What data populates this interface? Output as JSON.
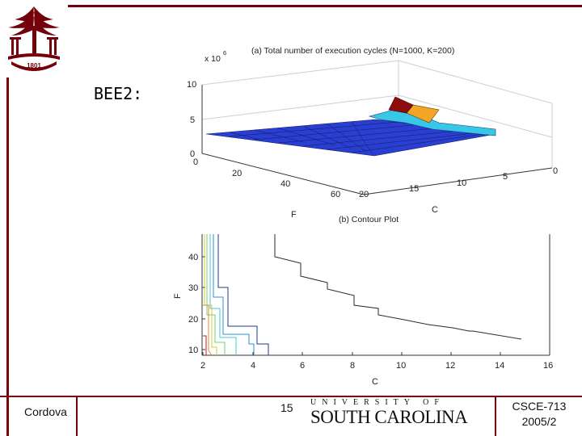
{
  "slide": {
    "heading": "BEE2:",
    "author": "Cordova",
    "page_number": "15",
    "course": "CSCE-713",
    "term": "2005/2"
  },
  "university": {
    "line1": "UNIVERSITY OF",
    "line2": "SOUTH CAROLINA",
    "seal_year": "1801",
    "brand_color": "#73000a"
  },
  "surface_plot": {
    "title": "(a) Total number of execution cycles (N=1000, K=200)",
    "multiplier": "x 10",
    "exponent": "6",
    "z_ticks": [
      "10",
      "5",
      "0"
    ],
    "f_ticks": [
      "0",
      "20",
      "40",
      "60"
    ],
    "c_ticks": [
      "20",
      "15",
      "10",
      "5",
      "0"
    ],
    "f_label": "F",
    "c_label": "C"
  },
  "contour_plot": {
    "title": "(b) Contour Plot",
    "y_ticks": [
      "40",
      "30",
      "20",
      "10"
    ],
    "x_ticks": [
      "2",
      "4",
      "6",
      "8",
      "10",
      "12",
      "14",
      "16"
    ],
    "xlabel": "C",
    "ylabel": "F"
  }
}
